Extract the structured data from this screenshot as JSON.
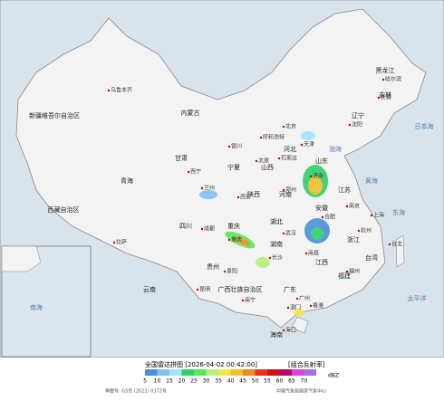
{
  "map": {
    "regions": [
      "新疆维吾尔自治区",
      "西藏自治区",
      "青海",
      "甘肃",
      "内蒙古",
      "黑龙江",
      "吉林",
      "辽宁",
      "河北",
      "山西",
      "陕西",
      "宁夏",
      "四川",
      "重庆",
      "云南",
      "贵州",
      "广西壮族自治区",
      "广东",
      "湖南",
      "湖北",
      "河南",
      "山东",
      "江苏",
      "安徽",
      "浙江",
      "江西",
      "福建",
      "台湾",
      "海南"
    ],
    "cities": [
      "乌鲁木齐",
      "拉萨",
      "西宁",
      "兰州",
      "银川",
      "呼和浩特",
      "北京",
      "天津",
      "石家庄",
      "太原",
      "济南",
      "郑州",
      "西安",
      "成都",
      "重庆",
      "贵阳",
      "昆明",
      "南宁",
      "广州",
      "香港",
      "澳门",
      "长沙",
      "武汉",
      "合肥",
      "南京",
      "上海",
      "杭州",
      "南昌",
      "福州",
      "台北",
      "海口",
      "沈阳",
      "长春",
      "哈尔滨"
    ],
    "seas": [
      "渤海",
      "黄海",
      "东海",
      "南海",
      "太平洋",
      "日本海"
    ]
  },
  "legend": {
    "title": "全国雷达拼图 [2026-04-02 00:42:00]",
    "product": "[组合反射率]",
    "unit": "dBZ",
    "ticks": [
      "5",
      "10",
      "15",
      "20",
      "25",
      "30",
      "35",
      "40",
      "45",
      "50",
      "55",
      "60",
      "65",
      "70"
    ],
    "colors": [
      "#4a90d9",
      "#7ec3f0",
      "#a6e3f7",
      "#2fd06a",
      "#5ae85a",
      "#b4f07a",
      "#f5e64b",
      "#f0c030",
      "#f08a1e",
      "#e8321e",
      "#d0141e",
      "#b40a6e",
      "#e040e0",
      "#a070e0"
    ],
    "approval": "审图号: GS京 (2022) 0372号",
    "source": "中国气象局国家气象中心"
  }
}
